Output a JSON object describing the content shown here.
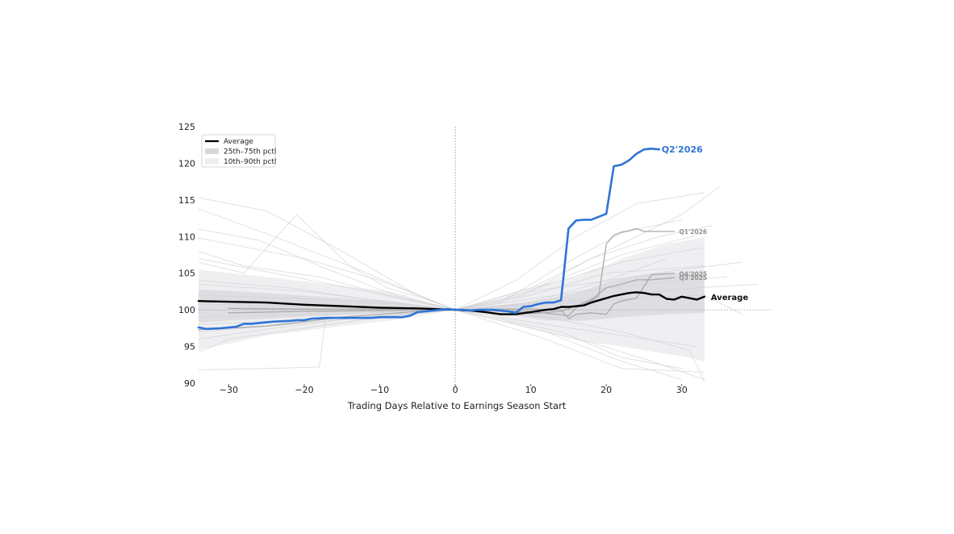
{
  "chart_data": {
    "type": "line",
    "xlabel": "Trading Days Relative to Earnings Season Start",
    "ylabel": "",
    "xlim": [
      -34,
      42
    ],
    "ylim": [
      90,
      125
    ],
    "xticks": [
      -30,
      -20,
      -10,
      0,
      10,
      20,
      30
    ],
    "yticks": [
      90,
      95,
      100,
      105,
      110,
      115,
      120,
      125
    ],
    "x_tick_labels": [
      "−30",
      "−20",
      "−10",
      "0",
      "10",
      "20",
      "30"
    ],
    "y_tick_labels": [
      "90",
      "95",
      "100",
      "105",
      "110",
      "115",
      "120",
      "125"
    ],
    "reference_line": {
      "x": 0,
      "y": 100
    },
    "legend": {
      "placement": "top-left",
      "entries": [
        {
          "label": "Average",
          "kind": "line",
          "color": "#000000"
        },
        {
          "label": "25th–75th pctl",
          "kind": "band",
          "color": "#d8d8dc"
        },
        {
          "label": "10th–90th pctl",
          "kind": "band",
          "color": "#ededf0"
        }
      ]
    },
    "bands": {
      "p10_p90": {
        "x": [
          -34,
          -25,
          -15,
          -8,
          -4,
          0,
          4,
          8,
          12,
          16,
          18,
          20,
          22,
          25,
          28,
          31,
          33
        ],
        "lower": [
          94.5,
          96.5,
          97.8,
          98.6,
          99.3,
          100,
          99.4,
          98.0,
          97.0,
          96.0,
          95.5,
          95.3,
          95.0,
          94.5,
          94.0,
          93.5,
          93.0
        ],
        "upper": [
          105.5,
          104.5,
          103.3,
          102.4,
          101.2,
          100,
          100.8,
          102.0,
          103.5,
          104.5,
          105.5,
          106.0,
          107.0,
          108.0,
          109.0,
          109.5,
          110.0
        ]
      },
      "p25_p75": {
        "x": [
          -34,
          -25,
          -15,
          -8,
          -4,
          0,
          4,
          8,
          12,
          16,
          18,
          20,
          22,
          25,
          28,
          31,
          33
        ],
        "lower": [
          98.3,
          98.8,
          99.3,
          99.6,
          99.8,
          100,
          99.7,
          99.2,
          98.6,
          98.5,
          98.6,
          98.8,
          99.0,
          99.2,
          99.4,
          99.5,
          99.6
        ],
        "upper": [
          102.8,
          102.3,
          101.6,
          101.1,
          100.5,
          100,
          100.3,
          100.8,
          101.5,
          102.3,
          103.0,
          103.8,
          104.3,
          104.8,
          105.0,
          105.0,
          105.0
        ]
      }
    },
    "highlight_series": [
      {
        "name": "Q2'2026",
        "color": "#2f74d8",
        "x": [
          -34,
          -33,
          -31,
          -29,
          -28,
          -27,
          -25,
          -24,
          -22,
          -21,
          -20,
          -19,
          -17,
          -15,
          -13,
          -11,
          -10,
          -8,
          -7,
          -6,
          -5,
          -4,
          -3,
          -2,
          -1,
          0,
          1,
          2,
          3,
          4,
          5,
          6,
          7,
          8,
          9,
          10,
          11,
          12,
          13,
          14,
          15,
          16,
          17,
          18,
          20,
          21,
          22,
          23,
          24,
          25,
          26,
          27
        ],
        "y": [
          97.6,
          97.4,
          97.5,
          97.7,
          98.1,
          98.1,
          98.3,
          98.4,
          98.5,
          98.6,
          98.6,
          98.8,
          98.9,
          98.9,
          98.9,
          98.9,
          99.0,
          99.0,
          99.0,
          99.2,
          99.7,
          99.8,
          99.9,
          100.0,
          100.1,
          100.0,
          100.0,
          99.9,
          100.0,
          100.0,
          100.0,
          99.9,
          99.8,
          99.6,
          100.4,
          100.5,
          100.8,
          101.0,
          101.0,
          101.3,
          111.1,
          112.2,
          112.3,
          112.3,
          113.1,
          119.6,
          119.8,
          120.4,
          121.3,
          121.9,
          122.0,
          121.9
        ]
      },
      {
        "name": "Average",
        "color": "#000000",
        "x": [
          -34,
          -30,
          -25,
          -20,
          -15,
          -10,
          -5,
          0,
          2,
          4,
          6,
          8,
          10,
          12,
          13,
          14,
          15,
          16,
          17,
          18,
          19,
          20,
          21,
          22,
          23,
          24,
          25,
          26,
          27,
          28,
          29,
          30,
          31,
          32,
          33
        ],
        "y": [
          101.2,
          101.1,
          101.0,
          100.7,
          100.5,
          100.3,
          100.2,
          100.0,
          99.9,
          99.7,
          99.4,
          99.4,
          99.7,
          100.0,
          100.1,
          100.4,
          100.4,
          100.5,
          100.6,
          101.0,
          101.3,
          101.6,
          101.9,
          102.1,
          102.3,
          102.4,
          102.3,
          102.1,
          102.1,
          101.5,
          101.4,
          101.8,
          101.6,
          101.4,
          101.8
        ]
      },
      {
        "name": "Q1'2026",
        "color": "#aaaaaa",
        "x": [
          -34,
          -30,
          -25,
          -20,
          -15,
          -10,
          -5,
          0,
          5,
          10,
          15,
          16,
          18,
          19,
          20,
          21,
          22,
          23,
          24,
          25,
          27,
          29
        ],
        "y": [
          97.3,
          97.5,
          97.8,
          98.4,
          99.0,
          99.4,
          99.8,
          100.0,
          99.9,
          99.8,
          99.2,
          100.3,
          101.2,
          101.9,
          109.0,
          110.2,
          110.6,
          110.8,
          111.1,
          110.7,
          110.7,
          110.7
        ]
      },
      {
        "name": "Q4'2025",
        "color": "#aaaaaa",
        "x": [
          -30,
          -20,
          -10,
          -5,
          0,
          5,
          10,
          14,
          15,
          16,
          18,
          20,
          21,
          22,
          24,
          26,
          29
        ],
        "y": [
          99.6,
          99.8,
          99.9,
          100.0,
          100.0,
          100.1,
          100.1,
          100.0,
          98.8,
          99.4,
          99.6,
          99.4,
          100.8,
          101.2,
          101.6,
          104.8,
          105.0
        ]
      },
      {
        "name": "Q3'2025",
        "color": "#aaaaaa",
        "x": [
          -30,
          -20,
          -10,
          -5,
          0,
          5,
          10,
          14,
          16,
          18,
          20,
          22,
          24,
          26,
          29
        ],
        "y": [
          100.2,
          100.1,
          100.1,
          100.0,
          100.0,
          99.9,
          99.5,
          99.8,
          100.5,
          101.4,
          103.0,
          103.5,
          104.1,
          104.1,
          104.4
        ]
      }
    ],
    "end_labels": [
      {
        "text": "Q2'2026",
        "series": "Q2'2026"
      },
      {
        "text": "Q1'2026",
        "series": "Q1'2026"
      },
      {
        "text": "Q4'2025",
        "series": "Q4'2025"
      },
      {
        "text": "Q3'2025",
        "series": "Q3'2025"
      },
      {
        "text": "Average",
        "series": "Average"
      }
    ],
    "background_series_color": "#cfcfd4",
    "background_series": [
      {
        "x": [
          -34,
          -20,
          -10,
          0,
          10,
          20,
          30,
          35
        ],
        "y": [
          109.8,
          107.0,
          104.0,
          100.0,
          103.0,
          108.0,
          113.0,
          116.8
        ]
      },
      {
        "x": [
          -34,
          -25,
          -15,
          -5,
          0,
          8,
          16,
          24,
          33
        ],
        "y": [
          115.3,
          113.5,
          108.0,
          102.0,
          100.0,
          104.0,
          110.0,
          114.5,
          116.0
        ]
      },
      {
        "x": [
          -34,
          -24,
          -14,
          -6,
          0,
          6,
          14,
          22,
          30
        ],
        "y": [
          113.8,
          110.0,
          106.0,
          102.5,
          100.0,
          101.0,
          106.0,
          110.5,
          112.3
        ]
      },
      {
        "x": [
          -34,
          -26,
          -18,
          -8,
          0,
          9,
          18,
          27,
          34
        ],
        "y": [
          111.0,
          109.5,
          106.0,
          102.0,
          100.0,
          102.0,
          107.0,
          110.0,
          111.5
        ]
      },
      {
        "x": [
          -34,
          -28,
          -18,
          -9,
          0,
          10,
          20,
          28
        ],
        "y": [
          108.0,
          106.0,
          104.5,
          102.0,
          100.0,
          101.0,
          104.0,
          107.0
        ]
      },
      {
        "x": [
          -34,
          -28,
          -21,
          -18,
          -14,
          -9,
          -4,
          0,
          6,
          14,
          22,
          30,
          33
        ],
        "y": [
          106.5,
          105.0,
          113.0,
          110.0,
          106.0,
          103.0,
          101.5,
          100.0,
          101.5,
          104.0,
          106.5,
          108.0,
          108.5
        ]
      },
      {
        "x": [
          -34,
          -25,
          -18,
          -17,
          -10,
          0,
          10,
          20,
          33
        ],
        "y": [
          91.8,
          92.0,
          92.2,
          100.5,
          100.2,
          100.0,
          102.0,
          105.0,
          106.0
        ]
      },
      {
        "x": [
          -34,
          -30,
          -20,
          -10,
          0,
          12,
          22,
          33
        ],
        "y": [
          94.2,
          96.0,
          97.5,
          99.0,
          100.0,
          96.0,
          92.0,
          91.5
        ]
      },
      {
        "x": [
          -34,
          -20,
          -8,
          0,
          10,
          18,
          26,
          33
        ],
        "y": [
          103.5,
          102.5,
          101.0,
          100.0,
          97.5,
          95.5,
          93.0,
          90.5
        ]
      },
      {
        "x": [
          -34,
          -20,
          -8,
          0,
          10,
          20,
          30,
          38
        ],
        "y": [
          102.0,
          101.5,
          100.8,
          100.0,
          102.5,
          104.0,
          105.5,
          106.5
        ]
      },
      {
        "x": [
          -34,
          -22,
          -12,
          0,
          12,
          22,
          32,
          40
        ],
        "y": [
          100.8,
          100.5,
          100.3,
          100.0,
          101.0,
          102.0,
          103.0,
          103.5
        ]
      },
      {
        "x": [
          -34,
          -22,
          -12,
          0,
          12,
          22,
          32
        ],
        "y": [
          99.0,
          99.3,
          99.6,
          100.0,
          98.0,
          96.5,
          95.0
        ]
      },
      {
        "x": [
          -34,
          -22,
          -12,
          0,
          12,
          22,
          31,
          33
        ],
        "y": [
          98.0,
          98.6,
          99.2,
          100.0,
          99.0,
          97.0,
          94.5,
          90.2
        ]
      },
      {
        "x": [
          -34,
          -22,
          -12,
          0,
          12,
          22,
          33,
          38
        ],
        "y": [
          104.0,
          103.0,
          101.5,
          100.0,
          100.8,
          101.5,
          102.0,
          99.4
        ]
      },
      {
        "x": [
          -34,
          -22,
          -12,
          0,
          12,
          22,
          30
        ],
        "y": [
          101.5,
          101.0,
          100.5,
          100.0,
          97.0,
          93.0,
          90.5
        ]
      },
      {
        "x": [
          -34,
          -22,
          -12,
          0,
          12,
          22,
          33
        ],
        "y": [
          97.0,
          98.0,
          99.0,
          100.0,
          103.5,
          107.5,
          110.5
        ]
      },
      {
        "x": [
          -34,
          -24,
          -14,
          0,
          10,
          20,
          30,
          36
        ],
        "y": [
          107.0,
          105.0,
          103.0,
          100.0,
          101.5,
          103.0,
          104.0,
          104.5
        ]
      },
      {
        "x": [
          -34,
          -24,
          -14,
          0,
          14,
          22,
          30
        ],
        "y": [
          96.0,
          97.5,
          98.8,
          100.0,
          97.0,
          93.5,
          92.0
        ]
      }
    ]
  }
}
